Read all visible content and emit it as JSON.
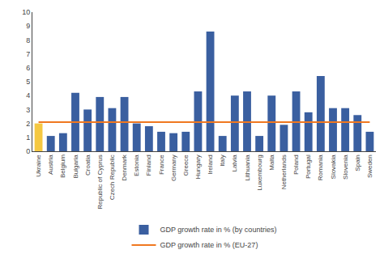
{
  "chart_data": {
    "type": "bar",
    "categories": [
      "Ukraine",
      "Austria",
      "Belgium",
      "Bulgaria",
      "Croatia",
      "Republic of Cyprus",
      "Czech Republic",
      "Denmark",
      "Estonia",
      "Finland",
      "France",
      "Germany",
      "Greece",
      "Hungary",
      "Ireland",
      "Italy",
      "Latvia",
      "Lithuania",
      "Luxembourg",
      "Malta",
      "Netherlands",
      "Poland",
      "Portugal",
      "Romania",
      "Slovakia",
      "Slovenia",
      "Spain",
      "Sweden"
    ],
    "series": [
      {
        "name": "GDP growth rate in % (by countries)",
        "type": "bar",
        "color": "#3a5fa0",
        "colors": [
          "#f5c842",
          "#3a5fa0",
          "#3a5fa0",
          "#3a5fa0",
          "#3a5fa0",
          "#3a5fa0",
          "#3a5fa0",
          "#3a5fa0",
          "#3a5fa0",
          "#3a5fa0",
          "#3a5fa0",
          "#3a5fa0",
          "#3a5fa0",
          "#3a5fa0",
          "#3a5fa0",
          "#3a5fa0",
          "#3a5fa0",
          "#3a5fa0",
          "#3a5fa0",
          "#3a5fa0",
          "#3a5fa0",
          "#3a5fa0",
          "#3a5fa0",
          "#3a5fa0",
          "#3a5fa0",
          "#3a5fa0",
          "#3a5fa0",
          "#3a5fa0"
        ],
        "values": [
          2.0,
          1.1,
          1.3,
          4.2,
          3.0,
          3.9,
          3.1,
          3.9,
          2.0,
          1.8,
          1.4,
          1.3,
          1.4,
          4.3,
          8.6,
          1.1,
          4.0,
          4.3,
          1.1,
          4.0,
          1.9,
          4.3,
          2.8,
          5.4,
          3.1,
          3.1,
          2.6,
          1.4
        ]
      },
      {
        "name": "GDP growth rate in % (EU-27)",
        "type": "line",
        "color": "#f07820",
        "values": [
          2.1,
          2.1,
          2.1,
          2.1,
          2.1,
          2.1,
          2.1,
          2.1,
          2.1,
          2.1,
          2.1,
          2.1,
          2.1,
          2.1,
          2.1,
          2.1,
          2.1,
          2.1,
          2.1,
          2.1,
          2.1,
          2.1,
          2.1,
          2.1,
          2.1,
          2.1,
          2.1,
          2.1
        ]
      }
    ],
    "ylim": [
      0,
      10
    ],
    "yticks": [
      0,
      1,
      2,
      3,
      4,
      5,
      6,
      7,
      8,
      9,
      10
    ],
    "grid": false,
    "legend": "bottom"
  }
}
